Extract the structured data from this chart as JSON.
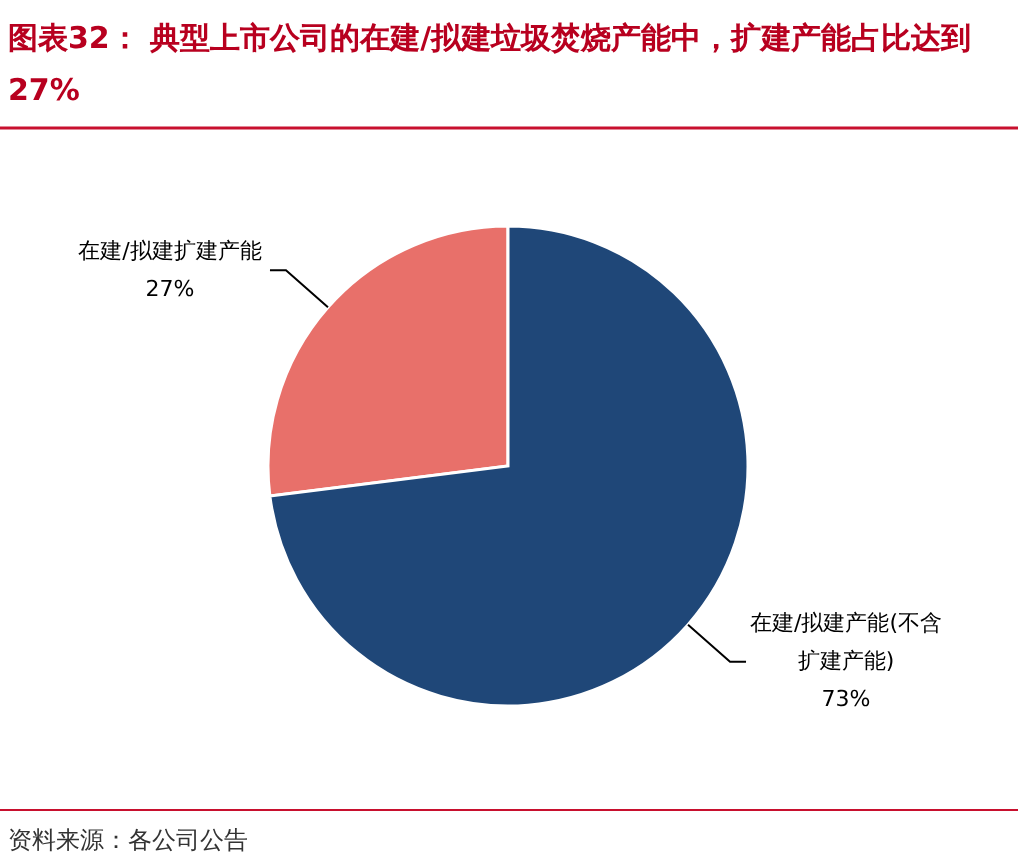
{
  "chart_data": {
    "type": "pie",
    "title": "图表32：  典型上市公司的在建/拟建垃圾焚烧产能中，扩建产能占比达到27%",
    "categories": [
      "在建/拟建扩建产能",
      "在建/拟建产能(不含扩建产能)"
    ],
    "values": [
      27,
      73
    ],
    "value_labels": [
      "27%",
      "73%"
    ],
    "colors": [
      "#e8706a",
      "#1f4778"
    ],
    "annotations": [
      "资料来源：各公司公告"
    ]
  }
}
